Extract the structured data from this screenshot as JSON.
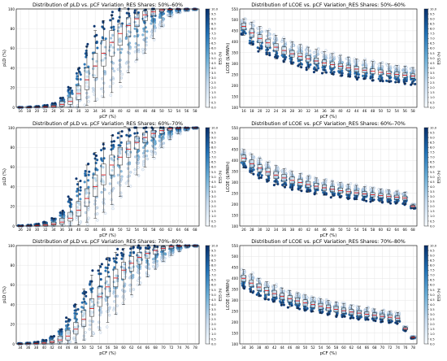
{
  "figure": {
    "title": ""
  },
  "colorbar": {
    "label": "ESS (h)",
    "min": 0,
    "max": 10,
    "ticks": [
      "0.0",
      "0.5",
      "1.0",
      "1.5",
      "2.0",
      "2.5",
      "3.0",
      "3.5",
      "4.0",
      "4.5",
      "5.0",
      "5.5",
      "6.0",
      "6.5",
      "7.0",
      "7.5",
      "8.0",
      "8.5",
      "9.0",
      "9.5",
      "10.0"
    ],
    "colors": {
      "low": "#f7fbff",
      "mid": "#6baed6",
      "high": "#08306b"
    }
  },
  "colors": {
    "median": "#e31a1c",
    "box_edge": "#222222",
    "grid": "#e6e6e6"
  },
  "chart_data": [
    {
      "type": "box",
      "title": "Distribution of pLD vs. pCF Variation_RES Shares: 50%–60%",
      "xlabel": "pCF (%)",
      "ylabel": "pLD (%)",
      "ylim": [
        0,
        100
      ],
      "yticks": [
        0,
        20,
        40,
        60,
        80,
        100
      ],
      "grid": true,
      "colorbar_label": "ESS (h)",
      "categories": [
        16,
        18,
        20,
        22,
        24,
        26,
        28,
        30,
        32,
        34,
        36,
        38,
        40,
        42,
        44,
        46,
        48,
        50,
        52,
        54,
        56,
        58
      ],
      "medians": [
        0,
        0,
        0,
        0.5,
        1,
        3,
        6,
        14,
        28,
        42,
        55,
        66,
        75,
        83,
        90,
        94,
        97,
        99,
        99.5,
        100,
        100,
        100
      ],
      "q1": [
        0,
        0,
        0,
        0,
        0,
        1,
        3,
        8,
        18,
        30,
        42,
        52,
        63,
        72,
        82,
        88,
        93,
        97,
        99,
        99.5,
        100,
        100
      ],
      "q3": [
        0,
        0,
        0.5,
        1,
        2,
        6,
        10,
        22,
        40,
        55,
        68,
        78,
        85,
        91,
        95,
        98,
        99,
        100,
        100,
        100,
        100,
        100
      ],
      "whisker_low": [
        0,
        0,
        0,
        0,
        0,
        0,
        0,
        0,
        2,
        6,
        10,
        15,
        25,
        35,
        48,
        55,
        70,
        82,
        92,
        96,
        98,
        99
      ],
      "whisker_high": [
        0,
        0.5,
        1,
        2,
        4,
        10,
        20,
        40,
        62,
        78,
        88,
        94,
        98,
        100,
        100,
        100,
        100,
        100,
        100,
        100,
        100,
        100
      ]
    },
    {
      "type": "box",
      "title": "Distribution of LCOE vs. pCF Variation_RES Shares: 50%–60%",
      "xlabel": "pCF (%)",
      "ylabel": "LCOE ($/MWh)",
      "ylim": [
        100,
        550
      ],
      "yticks": [
        100,
        150,
        200,
        250,
        300,
        350,
        400,
        450,
        500,
        550
      ],
      "grid": true,
      "colorbar_label": "ESS (h)",
      "categories": [
        16,
        18,
        20,
        22,
        24,
        26,
        28,
        30,
        32,
        34,
        36,
        38,
        40,
        42,
        44,
        46,
        48,
        50,
        52,
        54,
        56,
        58
      ],
      "medians": [
        470,
        440,
        415,
        395,
        375,
        360,
        345,
        333,
        322,
        312,
        303,
        295,
        288,
        281,
        275,
        270,
        265,
        260,
        255,
        251,
        247,
        243
      ],
      "q1": [
        455,
        420,
        395,
        375,
        358,
        343,
        330,
        318,
        308,
        298,
        290,
        282,
        275,
        268,
        263,
        258,
        253,
        249,
        245,
        241,
        237,
        233
      ],
      "q3": [
        485,
        458,
        432,
        412,
        392,
        376,
        360,
        348,
        336,
        326,
        317,
        308,
        300,
        293,
        287,
        281,
        276,
        271,
        266,
        261,
        257,
        253
      ],
      "whisker_low": [
        430,
        385,
        360,
        340,
        322,
        308,
        296,
        285,
        275,
        266,
        258,
        250,
        244,
        238,
        233,
        228,
        224,
        220,
        216,
        213,
        210,
        207
      ],
      "whisker_high": [
        505,
        490,
        470,
        450,
        430,
        415,
        400,
        387,
        375,
        365,
        355,
        346,
        338,
        330,
        322,
        316,
        310,
        304,
        298,
        292,
        288,
        282
      ]
    },
    {
      "type": "box",
      "title": "Distribution of pLD vs. pCF Variation_RES Shares: 60%–70%",
      "xlabel": "pCF (%)",
      "ylabel": "pLD (%)",
      "ylim": [
        0,
        100
      ],
      "yticks": [
        0,
        20,
        40,
        60,
        80,
        100
      ],
      "grid": true,
      "colorbar_label": "ESS (h)",
      "categories": [
        26,
        28,
        30,
        32,
        34,
        36,
        38,
        40,
        42,
        44,
        46,
        48,
        50,
        52,
        54,
        56,
        58,
        60,
        62,
        64,
        66,
        68
      ],
      "medians": [
        0,
        0,
        0.5,
        1,
        2,
        4,
        8,
        16,
        28,
        40,
        52,
        62,
        70,
        78,
        85,
        90,
        94,
        97,
        99,
        99.5,
        100,
        100
      ],
      "q1": [
        0,
        0,
        0,
        0,
        1,
        2,
        5,
        10,
        20,
        30,
        42,
        52,
        62,
        70,
        78,
        85,
        90,
        94,
        97,
        99,
        100,
        100
      ],
      "q3": [
        0,
        0.5,
        1,
        2,
        4,
        8,
        14,
        25,
        38,
        52,
        63,
        72,
        80,
        86,
        91,
        95,
        97,
        99,
        100,
        100,
        100,
        100
      ],
      "whisker_low": [
        0,
        0,
        0,
        0,
        0,
        0,
        0,
        1,
        4,
        8,
        14,
        22,
        30,
        40,
        52,
        60,
        70,
        80,
        88,
        94,
        97,
        99
      ],
      "whisker_high": [
        0.5,
        1,
        2,
        4,
        8,
        15,
        28,
        45,
        62,
        75,
        85,
        92,
        96,
        99,
        100,
        100,
        100,
        100,
        100,
        100,
        100,
        100
      ]
    },
    {
      "type": "box",
      "title": "Distribution of LCOE vs. pCF Variation_RES Shares: 60%–70%",
      "xlabel": "pCF (%)",
      "ylabel": "LCOE ($/MWh)",
      "ylim": [
        100,
        550
      ],
      "yticks": [
        100,
        150,
        200,
        250,
        300,
        350,
        400,
        450,
        500,
        550
      ],
      "grid": true,
      "colorbar_label": "ESS (h)",
      "categories": [
        26,
        28,
        30,
        32,
        34,
        36,
        38,
        40,
        42,
        44,
        46,
        48,
        50,
        52,
        54,
        56,
        58,
        60,
        62,
        64,
        66,
        68
      ],
      "medians": [
        410,
        385,
        365,
        348,
        333,
        320,
        309,
        299,
        290,
        282,
        275,
        268,
        262,
        257,
        252,
        247,
        243,
        239,
        235,
        232,
        228,
        190
      ],
      "q1": [
        395,
        368,
        348,
        331,
        317,
        305,
        294,
        285,
        277,
        270,
        263,
        257,
        251,
        246,
        241,
        237,
        233,
        229,
        226,
        222,
        219,
        185
      ],
      "q3": [
        425,
        402,
        380,
        364,
        349,
        336,
        324,
        314,
        304,
        295,
        288,
        281,
        274,
        268,
        263,
        258,
        253,
        249,
        245,
        241,
        237,
        195
      ],
      "whisker_low": [
        365,
        340,
        320,
        305,
        292,
        280,
        270,
        262,
        254,
        247,
        241,
        235,
        230,
        225,
        221,
        217,
        213,
        210,
        207,
        204,
        201,
        180
      ],
      "whisker_high": [
        450,
        430,
        410,
        392,
        376,
        362,
        350,
        340,
        330,
        320,
        312,
        305,
        298,
        292,
        286,
        280,
        275,
        270,
        265,
        260,
        255,
        200
      ]
    },
    {
      "type": "box",
      "title": "Distribution of pLD vs. pCF Variation_RES Shares: 70%–80%",
      "xlabel": "pCF (%)",
      "ylabel": "pLD (%)",
      "ylim": [
        0,
        100
      ],
      "yticks": [
        0,
        20,
        40,
        60,
        80,
        100
      ],
      "grid": true,
      "colorbar_label": "ESS (h)",
      "categories": [
        34,
        36,
        38,
        40,
        42,
        44,
        46,
        48,
        50,
        52,
        54,
        56,
        58,
        60,
        62,
        64,
        66,
        68,
        70,
        72,
        74,
        76,
        78
      ],
      "medians": [
        0,
        0,
        0.5,
        1,
        2,
        4,
        8,
        15,
        25,
        36,
        48,
        58,
        67,
        75,
        82,
        88,
        92,
        95,
        97,
        99,
        99.5,
        100,
        100
      ],
      "q1": [
        0,
        0,
        0,
        0,
        1,
        2,
        4,
        10,
        18,
        28,
        38,
        48,
        58,
        66,
        74,
        81,
        87,
        91,
        95,
        97,
        99,
        100,
        100
      ],
      "q3": [
        0,
        0.5,
        1,
        2,
        4,
        8,
        14,
        22,
        34,
        46,
        58,
        68,
        76,
        83,
        89,
        93,
        96,
        98,
        99,
        100,
        100,
        100,
        100
      ],
      "whisker_low": [
        0,
        0,
        0,
        0,
        0,
        0,
        0,
        1,
        4,
        8,
        14,
        22,
        30,
        40,
        50,
        60,
        68,
        76,
        84,
        90,
        94,
        98,
        99
      ],
      "whisker_high": [
        0.5,
        1,
        2,
        4,
        8,
        15,
        26,
        40,
        56,
        70,
        80,
        88,
        93,
        97,
        99,
        100,
        100,
        100,
        100,
        100,
        100,
        100,
        100
      ]
    },
    {
      "type": "box",
      "title": "Distribution of LCOE vs. pCF Variation_RES Shares: 70%–80%",
      "xlabel": "pCF (%)",
      "ylabel": "LCOE ($/MWh)",
      "ylim": [
        100,
        550
      ],
      "yticks": [
        100,
        150,
        200,
        250,
        300,
        350,
        400,
        450,
        500,
        550
      ],
      "grid": true,
      "colorbar_label": "ESS (h)",
      "categories": [
        34,
        36,
        38,
        40,
        42,
        44,
        46,
        48,
        50,
        52,
        54,
        56,
        58,
        60,
        62,
        64,
        66,
        68,
        70,
        72,
        74,
        76,
        78
      ],
      "medians": [
        400,
        378,
        360,
        344,
        330,
        318,
        307,
        297,
        288,
        280,
        272,
        265,
        258,
        252,
        246,
        241,
        236,
        231,
        226,
        222,
        218,
        170,
        130
      ],
      "q1": [
        385,
        362,
        344,
        328,
        315,
        303,
        292,
        283,
        274,
        266,
        259,
        252,
        246,
        240,
        234,
        229,
        224,
        219,
        215,
        211,
        207,
        165,
        128
      ],
      "q3": [
        415,
        393,
        375,
        359,
        345,
        332,
        321,
        311,
        302,
        293,
        285,
        278,
        271,
        264,
        258,
        252,
        247,
        242,
        237,
        233,
        228,
        175,
        132
      ],
      "whisker_low": [
        355,
        335,
        318,
        303,
        290,
        280,
        270,
        261,
        253,
        246,
        240,
        234,
        228,
        223,
        218,
        214,
        210,
        206,
        202,
        198,
        195,
        160,
        125
      ],
      "whisker_high": [
        440,
        420,
        400,
        384,
        370,
        356,
        344,
        334,
        324,
        315,
        307,
        299,
        292,
        285,
        278,
        272,
        266,
        260,
        254,
        249,
        244,
        180,
        135
      ]
    }
  ]
}
